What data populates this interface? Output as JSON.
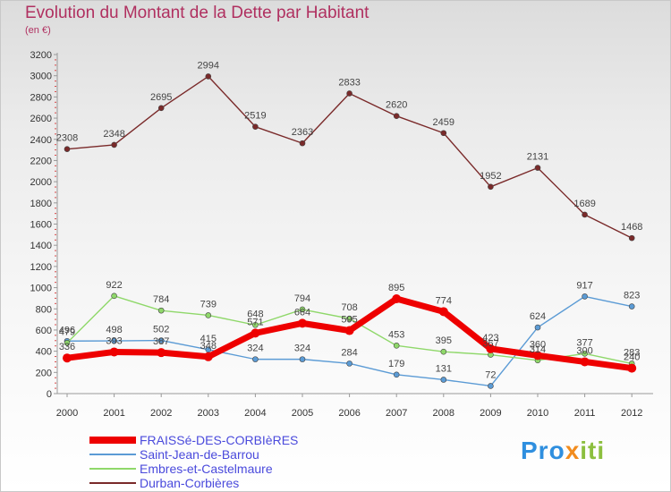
{
  "header": {
    "title": "Evolution du Montant de la Dette par Habitant",
    "subtitle": "(en €)"
  },
  "logo": {
    "text_parts": [
      "Pro",
      "x",
      "iti"
    ],
    "colors": [
      "#2f8fdf",
      "#f28c1e",
      "#8cbf3f"
    ]
  },
  "chart_data": {
    "type": "line",
    "title": "Evolution du Montant de la Dette par Habitant",
    "subtitle": "(en €)",
    "xlabel": "",
    "ylabel": "",
    "ylim": [
      0,
      3200
    ],
    "y_ticks": [
      "0",
      "200",
      "400",
      "600",
      "800",
      "1000",
      "1200",
      "1400",
      "1600",
      "1800",
      "2000",
      "2200",
      "2400",
      "2600",
      "2800",
      "3000",
      "3200"
    ],
    "categories": [
      "2000",
      "2001",
      "2002",
      "2003",
      "2004",
      "2005",
      "2006",
      "2007",
      "2008",
      "2009",
      "2010",
      "2011",
      "2012"
    ],
    "grid": false,
    "legend_position": "bottom-left",
    "series": [
      {
        "name": "Durban-Corbières",
        "color": "#7a2a2a",
        "emphasis": false,
        "values": [
          2308,
          2348,
          2695,
          2994,
          2519,
          2363,
          2833,
          2620,
          2459,
          1952,
          2131,
          1689,
          1468
        ]
      },
      {
        "name": "Saint-Jean-de-Barrou",
        "color": "#5b9bd5",
        "emphasis": false,
        "values": [
          496,
          498,
          502,
          415,
          324,
          324,
          284,
          179,
          131,
          72,
          624,
          917,
          823
        ]
      },
      {
        "name": "Embres-et-Castelmaure",
        "color": "#8fd86a",
        "emphasis": false,
        "values": [
          479,
          922,
          784,
          739,
          648,
          794,
          708,
          453,
          395,
          367,
          314,
          377,
          283
        ]
      },
      {
        "name": "FRAISSé-DES-CORBIèRES",
        "color": "#ee0000",
        "emphasis": true,
        "values": [
          336,
          393,
          387,
          348,
          571,
          664,
          595,
          895,
          774,
          423,
          360,
          300,
          240
        ]
      }
    ],
    "legend_order": [
      "FRAISSé-DES-CORBIèRES",
      "Saint-Jean-de-Barrou",
      "Embres-et-Castelmaure",
      "Durban-Corbières"
    ]
  }
}
